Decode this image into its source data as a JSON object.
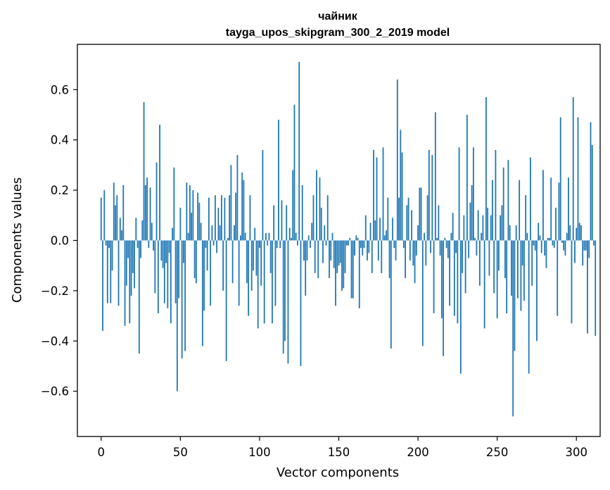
{
  "chart_data": {
    "type": "bar",
    "title": "чайник",
    "subtitle": "tayga_upos_skipgram_300_2_2019 model",
    "xlabel": "Vector components",
    "ylabel": "Components values",
    "xlim": [
      -15,
      315
    ],
    "ylim": [
      -0.78,
      0.78
    ],
    "xticks": [
      0,
      50,
      100,
      150,
      200,
      250,
      300
    ],
    "xtick_labels": [
      "0",
      "50",
      "100",
      "150",
      "200",
      "250",
      "300"
    ],
    "yticks": [
      -0.6,
      -0.4,
      -0.2,
      0.0,
      0.2,
      0.4,
      0.6
    ],
    "ytick_labels": [
      "−0.6",
      "−0.4",
      "−0.2",
      "0.0",
      "0.2",
      "0.4",
      "0.6"
    ],
    "bar_color": "#1f77b4",
    "series": [
      {
        "name": "components",
        "values": [
          0.17,
          -0.36,
          0.2,
          -0.02,
          -0.25,
          -0.03,
          -0.25,
          -0.12,
          0.23,
          0.14,
          0.18,
          -0.26,
          0.09,
          0.04,
          0.22,
          -0.34,
          -0.18,
          -0.07,
          -0.33,
          -0.22,
          -0.13,
          -0.19,
          0.09,
          -0.03,
          -0.45,
          -0.07,
          0.08,
          0.55,
          0.22,
          0.25,
          -0.03,
          0.21,
          0.07,
          -0.04,
          -0.21,
          0.31,
          -0.29,
          0.46,
          -0.08,
          -0.11,
          -0.25,
          -0.09,
          -0.27,
          -0.05,
          -0.33,
          0.05,
          0.29,
          -0.25,
          -0.6,
          -0.23,
          0.13,
          -0.47,
          -0.09,
          -0.44,
          0.23,
          0.03,
          0.22,
          0.11,
          0.2,
          -0.15,
          -0.17,
          0.19,
          0.15,
          0.07,
          -0.42,
          -0.28,
          -0.03,
          -0.12,
          0.17,
          -0.26,
          0.06,
          -0.02,
          0.18,
          -0.05,
          0.13,
          0.06,
          0.18,
          -0.2,
          0.17,
          -0.48,
          0.01,
          0.18,
          0.3,
          -0.17,
          0.06,
          0.19,
          0.34,
          -0.26,
          0.02,
          0.27,
          0.24,
          0.03,
          -0.17,
          -0.3,
          0.18,
          -0.2,
          -0.12,
          0.05,
          -0.14,
          -0.35,
          -0.03,
          -0.18,
          0.36,
          -0.33,
          0.03,
          -0.02,
          0.03,
          -0.13,
          -0.33,
          0.14,
          -0.26,
          -0.03,
          0.48,
          -0.03,
          0.16,
          -0.45,
          -0.4,
          0.14,
          -0.49,
          0.05,
          0.01,
          0.28,
          0.54,
          0.03,
          -0.02,
          0.71,
          -0.5,
          0.22,
          -0.08,
          -0.22,
          -0.08,
          0.02,
          -0.03,
          0.07,
          0.18,
          -0.13,
          0.28,
          -0.15,
          0.25,
          0.13,
          -0.09,
          0.06,
          -0.02,
          0.18,
          -0.15,
          -0.08,
          0.03,
          -0.11,
          -0.26,
          -0.13,
          -0.1,
          -0.09,
          -0.2,
          -0.19,
          -0.13,
          -0.02,
          -0.02,
          0.01,
          -0.23,
          -0.23,
          -0.06,
          0.02,
          0.01,
          -0.27,
          -0.03,
          -0.06,
          -0.03,
          0.1,
          -0.08,
          -0.05,
          0.07,
          -0.13,
          0.36,
          0.08,
          0.33,
          -0.08,
          0.09,
          -0.13,
          0.37,
          0.02,
          0.04,
          0.17,
          -0.15,
          -0.43,
          0.09,
          -0.03,
          -0.08,
          0.64,
          0.17,
          0.44,
          0.35,
          -0.03,
          -0.15,
          0.14,
          0.17,
          -0.08,
          0.12,
          -0.1,
          -0.17,
          -0.06,
          0.06,
          0.21,
          0.21,
          -0.42,
          0.03,
          -0.1,
          0.18,
          0.36,
          -0.05,
          0.34,
          -0.29,
          0.51,
          0.01,
          0.14,
          -0.06,
          -0.31,
          -0.46,
          0.01,
          -0.03,
          -0.07,
          -0.26,
          0.03,
          0.11,
          -0.3,
          -0.05,
          -0.33,
          0.37,
          -0.53,
          -0.13,
          0.1,
          -0.21,
          0.5,
          -0.07,
          0.15,
          0.22,
          0.37,
          0.01,
          -0.06,
          0.12,
          -0.18,
          0.03,
          0.1,
          -0.35,
          0.57,
          0.13,
          -0.14,
          0.1,
          0.24,
          -0.21,
          0.36,
          -0.31,
          -0.12,
          0.1,
          0.14,
          0.29,
          -0.15,
          -0.29,
          0.32,
          0.06,
          -0.22,
          -0.7,
          -0.44,
          0.06,
          -0.23,
          0.24,
          -0.28,
          -0.1,
          -0.24,
          0.18,
          0.03,
          -0.53,
          0.33,
          -0.18,
          -0.02,
          -0.04,
          -0.4,
          0.07,
          0.02,
          -0.05,
          0.28,
          -0.06,
          -0.11,
          0.01,
          0.01,
          0.25,
          -0.02,
          -0.03,
          0.13,
          -0.3,
          0.23,
          0.49,
          -0.01,
          -0.04,
          -0.06,
          0.03,
          0.25,
          0.06,
          -0.33,
          0.57,
          -0.09,
          0.05,
          0.49,
          0.07,
          0.06,
          -0.1,
          -0.04,
          -0.04,
          -0.37,
          -0.07,
          0.47,
          0.38,
          -0.02,
          -0.38
        ]
      }
    ]
  }
}
